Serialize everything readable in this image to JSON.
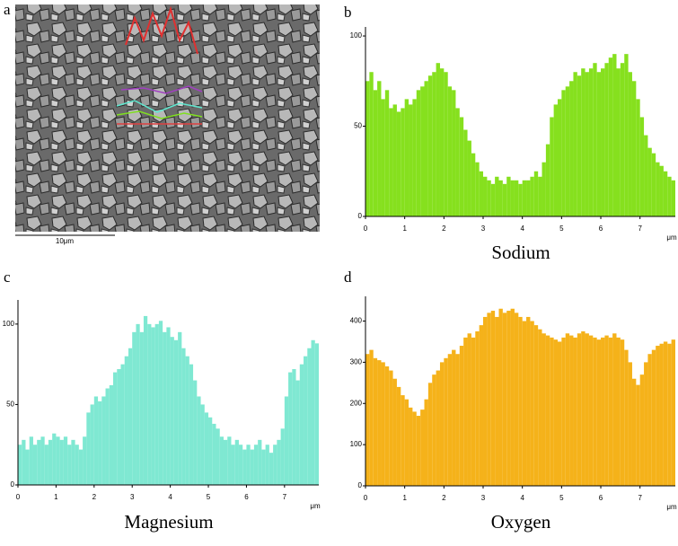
{
  "panel_a": {
    "panel_label": "a",
    "scale_bar_label": "10μm"
  },
  "chart_data": [
    {
      "type": "bar",
      "panel_label": "b",
      "xlabel": "Sodium",
      "x_unit": "μm",
      "color": "#86e01e",
      "x": [
        0,
        0.1,
        0.2,
        0.3,
        0.4,
        0.5,
        0.6,
        0.7,
        0.8,
        0.9,
        1,
        1.1,
        1.2,
        1.3,
        1.4,
        1.5,
        1.6,
        1.7,
        1.8,
        1.9,
        2,
        2.1,
        2.2,
        2.3,
        2.4,
        2.5,
        2.6,
        2.7,
        2.8,
        2.9,
        3,
        3.1,
        3.2,
        3.3,
        3.4,
        3.5,
        3.6,
        3.7,
        3.8,
        3.9,
        4,
        4.1,
        4.2,
        4.3,
        4.4,
        4.5,
        4.6,
        4.7,
        4.8,
        4.9,
        5,
        5.1,
        5.2,
        5.3,
        5.4,
        5.5,
        5.6,
        5.7,
        5.8,
        5.9,
        6,
        6.1,
        6.2,
        6.3,
        6.4,
        6.5,
        6.6,
        6.7,
        6.8,
        6.9,
        7,
        7.1,
        7.2,
        7.3,
        7.4,
        7.5,
        7.6,
        7.7,
        7.8
      ],
      "values": [
        75,
        80,
        70,
        75,
        65,
        70,
        60,
        62,
        58,
        60,
        65,
        62,
        65,
        70,
        72,
        75,
        78,
        80,
        85,
        82,
        80,
        72,
        70,
        60,
        55,
        48,
        42,
        35,
        30,
        25,
        22,
        20,
        18,
        22,
        20,
        18,
        22,
        20,
        20,
        18,
        20,
        20,
        22,
        25,
        22,
        30,
        40,
        55,
        62,
        65,
        70,
        72,
        75,
        80,
        78,
        82,
        80,
        82,
        85,
        80,
        82,
        85,
        88,
        90,
        82,
        85,
        90,
        80,
        75,
        65,
        55,
        45,
        38,
        35,
        30,
        28,
        25,
        22,
        20
      ],
      "xlim": [
        0,
        7.9
      ],
      "ylim": [
        0,
        105
      ],
      "xticks": [
        0,
        1,
        2,
        3,
        4,
        5,
        6,
        7
      ],
      "yticks": [
        0,
        50,
        100
      ]
    },
    {
      "type": "bar",
      "panel_label": "c",
      "xlabel": "Magnesium",
      "x_unit": "μm",
      "color": "#7fe8d2",
      "x": [
        0,
        0.1,
        0.2,
        0.3,
        0.4,
        0.5,
        0.6,
        0.7,
        0.8,
        0.9,
        1,
        1.1,
        1.2,
        1.3,
        1.4,
        1.5,
        1.6,
        1.7,
        1.8,
        1.9,
        2,
        2.1,
        2.2,
        2.3,
        2.4,
        2.5,
        2.6,
        2.7,
        2.8,
        2.9,
        3,
        3.1,
        3.2,
        3.3,
        3.4,
        3.5,
        3.6,
        3.7,
        3.8,
        3.9,
        4,
        4.1,
        4.2,
        4.3,
        4.4,
        4.5,
        4.6,
        4.7,
        4.8,
        4.9,
        5,
        5.1,
        5.2,
        5.3,
        5.4,
        5.5,
        5.6,
        5.7,
        5.8,
        5.9,
        6,
        6.1,
        6.2,
        6.3,
        6.4,
        6.5,
        6.6,
        6.7,
        6.8,
        6.9,
        7,
        7.1,
        7.2,
        7.3,
        7.4,
        7.5,
        7.6,
        7.7,
        7.8
      ],
      "values": [
        25,
        28,
        22,
        30,
        25,
        28,
        30,
        25,
        28,
        32,
        30,
        28,
        30,
        25,
        28,
        25,
        22,
        30,
        45,
        50,
        55,
        52,
        55,
        60,
        62,
        70,
        72,
        75,
        80,
        85,
        95,
        100,
        95,
        105,
        100,
        98,
        100,
        102,
        95,
        98,
        92,
        90,
        95,
        85,
        80,
        75,
        65,
        55,
        50,
        45,
        42,
        38,
        35,
        30,
        28,
        30,
        25,
        28,
        25,
        22,
        25,
        22,
        25,
        28,
        22,
        25,
        20,
        25,
        28,
        35,
        55,
        70,
        72,
        65,
        75,
        80,
        85,
        90,
        88
      ],
      "xlim": [
        0,
        7.9
      ],
      "ylim": [
        0,
        115
      ],
      "xticks": [
        0,
        1,
        2,
        3,
        4,
        5,
        6,
        7
      ],
      "yticks": [
        0,
        50,
        100
      ]
    },
    {
      "type": "bar",
      "panel_label": "d",
      "xlabel": "Oxygen",
      "x_unit": "μm",
      "color": "#f5b21a",
      "x": [
        0,
        0.1,
        0.2,
        0.3,
        0.4,
        0.5,
        0.6,
        0.7,
        0.8,
        0.9,
        1,
        1.1,
        1.2,
        1.3,
        1.4,
        1.5,
        1.6,
        1.7,
        1.8,
        1.9,
        2,
        2.1,
        2.2,
        2.3,
        2.4,
        2.5,
        2.6,
        2.7,
        2.8,
        2.9,
        3,
        3.1,
        3.2,
        3.3,
        3.4,
        3.5,
        3.6,
        3.7,
        3.8,
        3.9,
        4,
        4.1,
        4.2,
        4.3,
        4.4,
        4.5,
        4.6,
        4.7,
        4.8,
        4.9,
        5,
        5.1,
        5.2,
        5.3,
        5.4,
        5.5,
        5.6,
        5.7,
        5.8,
        5.9,
        6,
        6.1,
        6.2,
        6.3,
        6.4,
        6.5,
        6.6,
        6.7,
        6.8,
        6.9,
        7,
        7.1,
        7.2,
        7.3,
        7.4,
        7.5,
        7.6,
        7.7,
        7.8
      ],
      "values": [
        320,
        330,
        310,
        305,
        300,
        290,
        280,
        260,
        240,
        220,
        210,
        190,
        180,
        170,
        185,
        210,
        250,
        270,
        280,
        300,
        310,
        320,
        330,
        320,
        340,
        360,
        370,
        360,
        375,
        390,
        410,
        420,
        425,
        410,
        430,
        420,
        425,
        430,
        420,
        410,
        400,
        410,
        400,
        390,
        380,
        370,
        365,
        360,
        355,
        350,
        360,
        370,
        365,
        360,
        370,
        375,
        370,
        365,
        360,
        355,
        360,
        365,
        360,
        370,
        360,
        355,
        330,
        300,
        260,
        245,
        270,
        300,
        320,
        330,
        340,
        345,
        350,
        345,
        355
      ],
      "xlim": [
        0,
        7.9
      ],
      "ylim": [
        0,
        460
      ],
      "xticks": [
        0,
        1,
        2,
        3,
        4,
        5,
        6,
        7
      ],
      "yticks": [
        0,
        100,
        200,
        300,
        400
      ]
    }
  ]
}
